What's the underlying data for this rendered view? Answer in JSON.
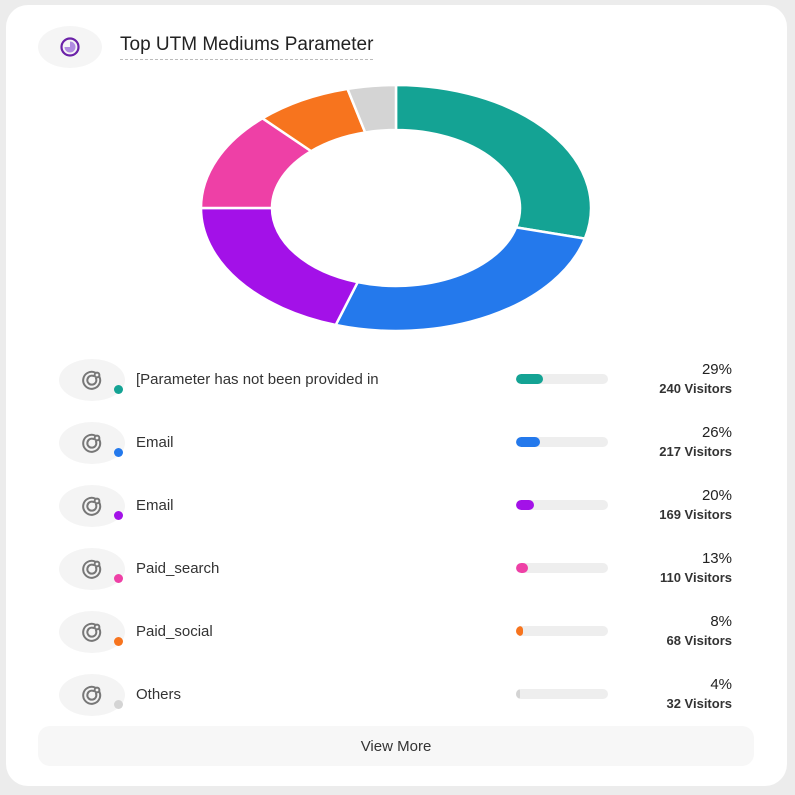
{
  "header": {
    "title": "Top UTM Mediums Parameter",
    "icon": "pie-chart-icon",
    "icon_color": "#6b21a8"
  },
  "chart_data": {
    "type": "pie",
    "donut": true,
    "categories": [
      "[Parameter has not been provided in",
      "Email",
      "Email",
      "Paid_search",
      "Paid_social",
      "Others"
    ],
    "values": [
      29,
      26,
      20,
      13,
      8,
      4
    ],
    "colors": [
      "#14a394",
      "#2479ec",
      "#a311e8",
      "#ee40a6",
      "#f7741e",
      "#d4d4d4"
    ]
  },
  "rows": [
    {
      "label": "[Parameter has not been provided in",
      "pct": "29%",
      "visitors": "240 Visitors",
      "value": 29,
      "color": "#14a394"
    },
    {
      "label": "Email",
      "pct": "26%",
      "visitors": "217 Visitors",
      "value": 26,
      "color": "#2479ec"
    },
    {
      "label": "Email",
      "pct": "20%",
      "visitors": "169 Visitors",
      "value": 20,
      "color": "#a311e8"
    },
    {
      "label": "Paid_search",
      "pct": "13%",
      "visitors": "110 Visitors",
      "value": 13,
      "color": "#ee40a6"
    },
    {
      "label": "Paid_social",
      "pct": "8%",
      "visitors": "68 Visitors",
      "value": 8,
      "color": "#f7741e"
    },
    {
      "label": "Others",
      "pct": "4%",
      "visitors": "32 Visitors",
      "value": 4,
      "color": "#d4d4d4"
    }
  ],
  "row_icon": "target-icon",
  "view_more_label": "View More"
}
